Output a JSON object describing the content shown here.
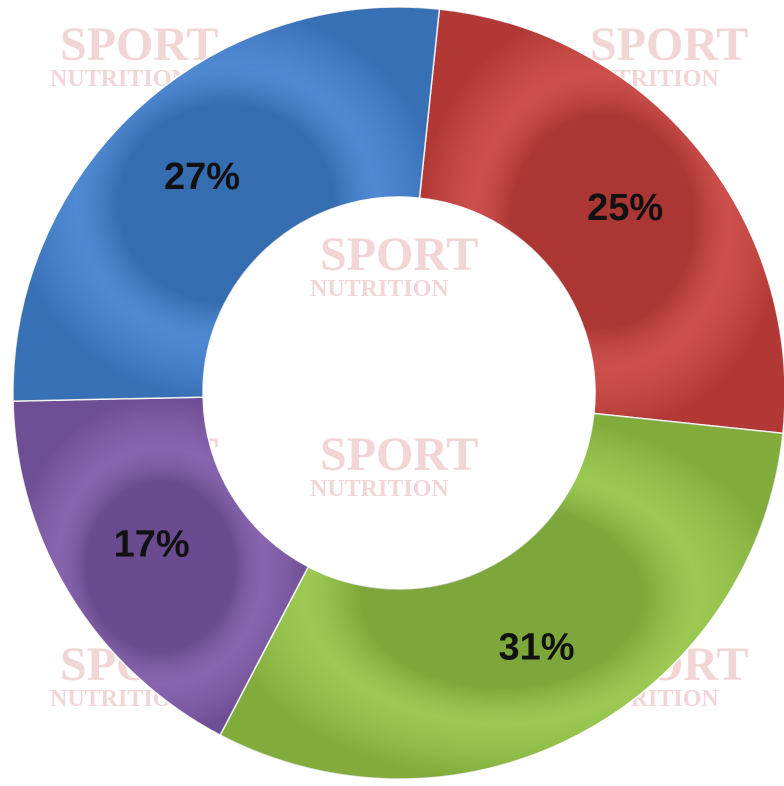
{
  "watermark": {
    "brand": "SPORT",
    "tagline": "NUTRITION"
  },
  "chart_data": {
    "type": "donut",
    "values": [
      25,
      31,
      17,
      27
    ],
    "value_labels": [
      "25%",
      "31%",
      "17%",
      "27%"
    ],
    "colors": [
      "#c9403c",
      "#93c444",
      "#7d58a8",
      "#3f7fcf"
    ]
  }
}
